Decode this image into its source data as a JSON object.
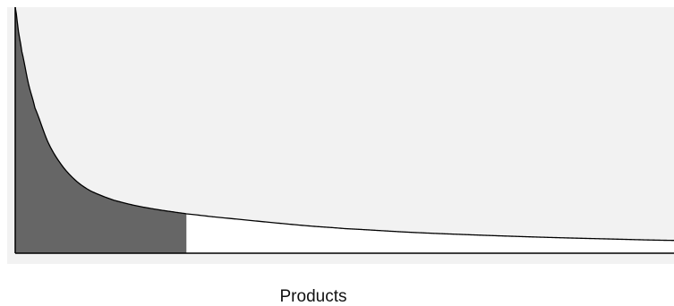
{
  "chart_data": {
    "type": "area",
    "title": "",
    "xlabel": "Products",
    "ylabel": "",
    "grid": false,
    "legend": "none",
    "head_fraction": 0.26,
    "series": [
      {
        "x": [
          0,
          0.005,
          0.01,
          0.02,
          0.03,
          0.05,
          0.07,
          0.09,
          0.11,
          0.13,
          0.15,
          0.18,
          0.21,
          0.24,
          0.26,
          0.3,
          0.35,
          0.4,
          0.45,
          0.5,
          0.6,
          0.7,
          0.8,
          0.9,
          1.0
        ],
        "y": [
          1.0,
          0.9,
          0.82,
          0.69,
          0.59,
          0.45,
          0.36,
          0.3,
          0.26,
          0.235,
          0.215,
          0.195,
          0.18,
          0.168,
          0.16,
          0.148,
          0.135,
          0.122,
          0.11,
          0.1,
          0.085,
          0.074,
          0.065,
          0.058,
          0.052
        ]
      }
    ]
  },
  "colors": {
    "background": "#f2f2f2",
    "head_fill": "#666666",
    "tail_fill": "#ffffff",
    "curve": "#000000",
    "axis": "#000000"
  }
}
